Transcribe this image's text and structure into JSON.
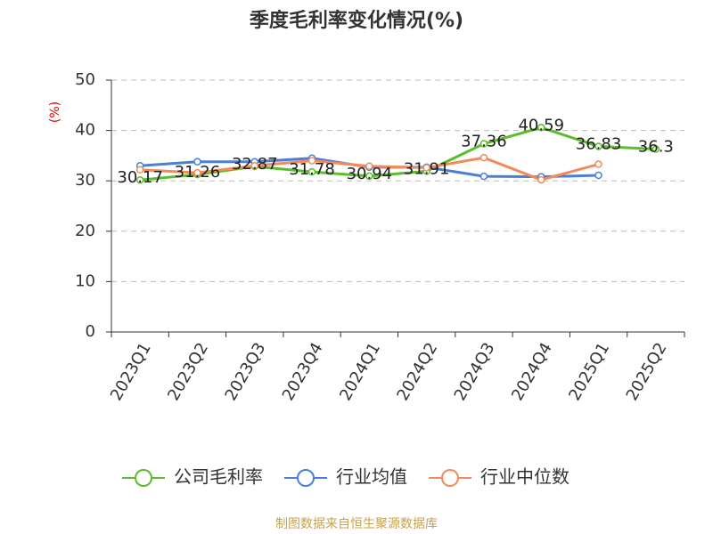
{
  "chart_data": {
    "type": "line",
    "title": "季度毛利率变化情况(%)",
    "y_label": "(%)",
    "source": "制图数据来自恒生聚源数据库",
    "categories": [
      "2023Q1",
      "2023Q2",
      "2023Q3",
      "2023Q4",
      "2024Q1",
      "2024Q2",
      "2024Q3",
      "2024Q4",
      "2025Q1",
      "2025Q2"
    ],
    "series": [
      {
        "name": "公司毛利率",
        "color": "#5bbd2b",
        "values": [
          30.17,
          31.26,
          32.87,
          31.78,
          30.94,
          31.91,
          37.36,
          40.59,
          36.83,
          36.3
        ],
        "show_labels": true
      },
      {
        "name": "行业均值",
        "color": "#4a7fd6",
        "values": [
          33.0,
          33.8,
          33.8,
          34.5,
          32.7,
          32.7,
          30.9,
          30.8,
          31.1,
          null
        ]
      },
      {
        "name": "行业中位数",
        "color": "#f4895a",
        "values": [
          32.2,
          31.6,
          33.0,
          34.0,
          32.9,
          32.6,
          34.6,
          30.2,
          33.3,
          null
        ]
      }
    ],
    "ylim": [
      0,
      50
    ],
    "yticks": [
      0,
      10,
      20,
      30,
      40,
      50
    ],
    "grid": true,
    "legend": "bottom"
  }
}
